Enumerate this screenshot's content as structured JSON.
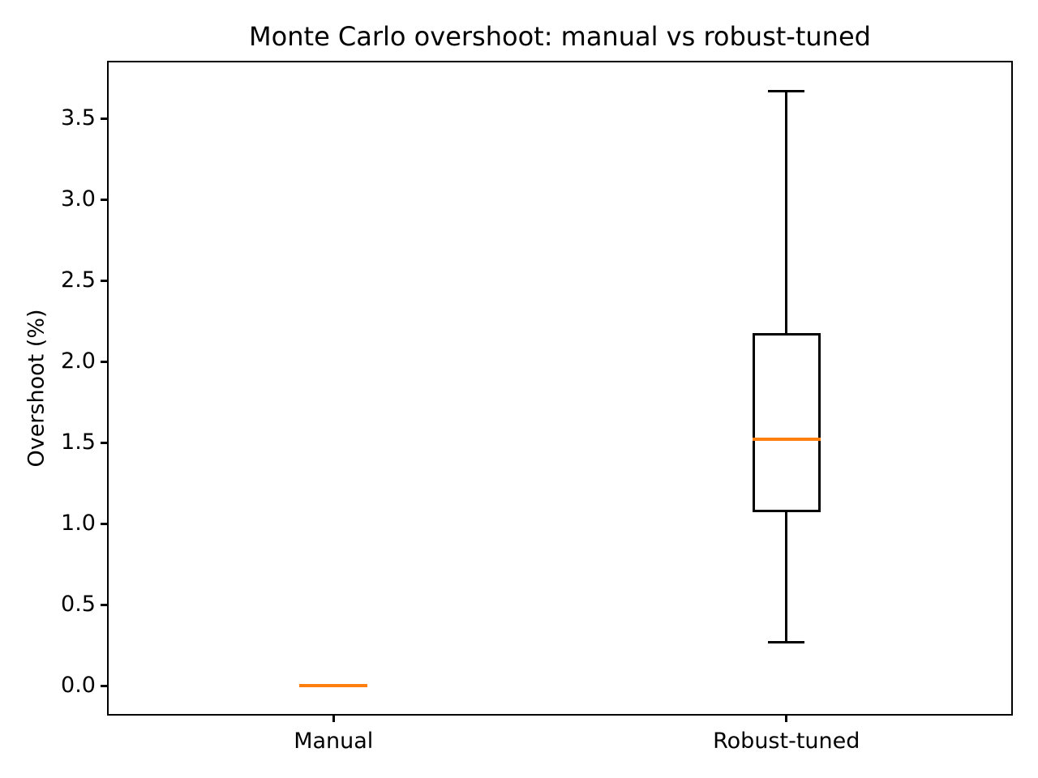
{
  "chart_data": {
    "type": "boxplot",
    "title": "Monte Carlo overshoot: manual vs robust-tuned",
    "xlabel": "",
    "ylabel": "Overshoot (%)",
    "categories": [
      "Manual",
      "Robust-tuned"
    ],
    "boxes": [
      {
        "category": "Manual",
        "whislo": 0.0,
        "q1": 0.0,
        "med": 0.0,
        "q3": 0.0,
        "whishi": 0.0,
        "fliers": []
      },
      {
        "category": "Robust-tuned",
        "whislo": 0.27,
        "q1": 1.08,
        "med": 1.52,
        "q3": 2.17,
        "whishi": 3.67,
        "fliers": []
      }
    ],
    "ylim": [
      -0.185,
      3.855
    ],
    "xlim": [
      0.5,
      2.5
    ],
    "yticks": [
      0.0,
      0.5,
      1.0,
      1.5,
      2.0,
      2.5,
      3.0,
      3.5
    ],
    "ytick_labels": [
      "0.0",
      "0.5",
      "1.0",
      "1.5",
      "2.0",
      "2.5",
      "3.0",
      "3.5"
    ],
    "grid": false,
    "legend": null,
    "colors": {
      "median": "#ff7f0e",
      "box": "#000000",
      "whisker": "#000000",
      "spine": "#000000",
      "background": "#ffffff"
    }
  }
}
